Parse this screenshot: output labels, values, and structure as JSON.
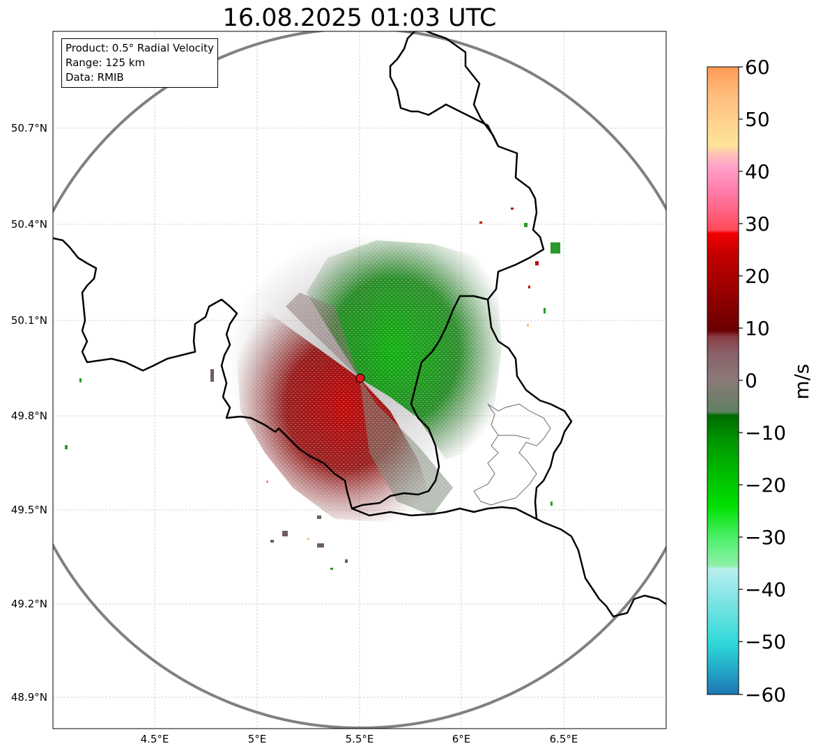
{
  "title": "16.08.2025 01:03 UTC",
  "info": {
    "product": "Product: 0.5° Radial Velocity",
    "range": "Range: 125 km",
    "data": "Data: RMIB"
  },
  "lat_ticks": [
    "50.7°N",
    "50.4°N",
    "50.1°N",
    "49.8°N",
    "49.5°N",
    "49.2°N",
    "48.9°N"
  ],
  "lon_ticks": [
    "4.5°E",
    "5°E",
    "5.5°E",
    "6°E",
    "6.5°E"
  ],
  "colorbar": {
    "label": "m/s",
    "ticks": [
      "60",
      "50",
      "40",
      "30",
      "20",
      "10",
      "0",
      "−10",
      "−20",
      "−30",
      "−40",
      "−50",
      "−60"
    ],
    "range": [
      -60,
      60
    ]
  },
  "radar_site": {
    "name": "radar-site",
    "lon": 5.5,
    "lat": 49.91,
    "color": "#e8141e"
  },
  "colors": {
    "range_ring": "#808080",
    "border": "#000000",
    "grid": "#c8c8c8"
  }
}
